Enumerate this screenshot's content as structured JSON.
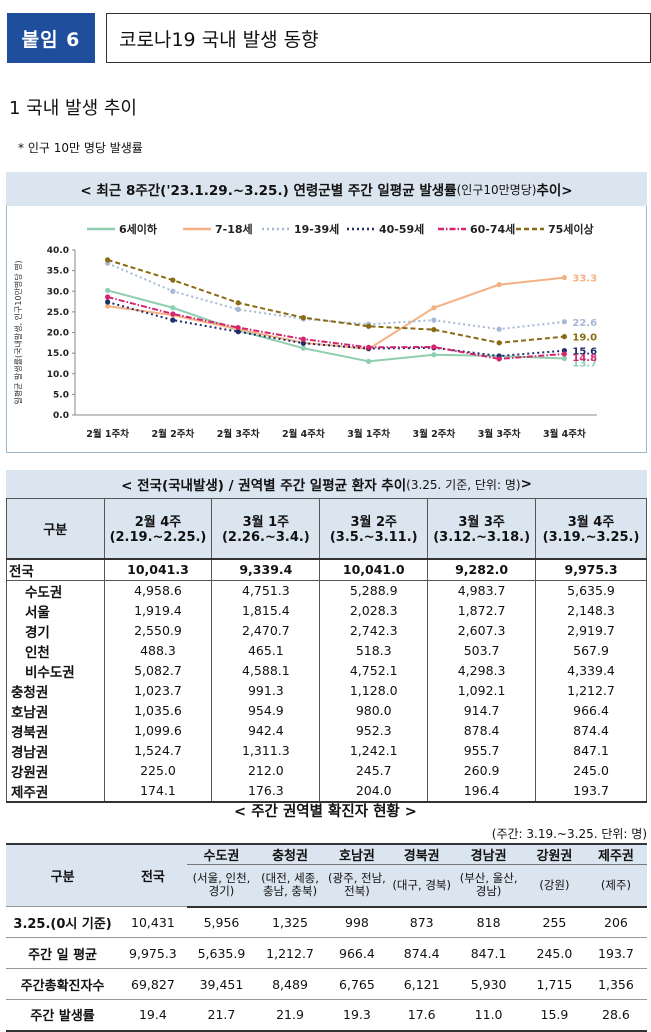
{
  "header": {
    "badge": "붙임 6",
    "title": "코로나19 국내 발생 동향"
  },
  "section": {
    "heading": "1  국내 발생 추이",
    "note": "* 인구 10만 명당 발생률"
  },
  "chart_title": {
    "main": "< 최근 8주간('23.1.29.~3.25.) 연령군별 주간 일평균 발생률",
    "small": "(인구10만명당)",
    "end": " 추이>"
  },
  "colors": {
    "header_blue": "#1f4e9c",
    "light_blue": "#dbe5f0",
    "s_0_6": "#8fcfb0",
    "s_7_18": "#f4b183",
    "s_19_39": "#a6b8d6",
    "s_40_59": "#1f2d6b",
    "s_60_74": "#d6246e",
    "s_75": "#8a6a12"
  },
  "chart_data": {
    "type": "line",
    "title": "최근 8주간('23.1.29.~3.25.) 연령군별 주간 일평균 발생률(인구10만명당) 추이",
    "ylabel": "일평균 발생률(국내발생, 인구10만명당 명)",
    "xlabel": "",
    "ylim": [
      0,
      40
    ],
    "yticks": [
      "0.0",
      "5.0",
      "10.0",
      "15.0",
      "20.0",
      "25.0",
      "30.0",
      "35.0",
      "40.0"
    ],
    "categories": [
      "2월 1주차",
      "2월 2주차",
      "2월 3주차",
      "2월 4주차",
      "3월 1주차",
      "3월 2주차",
      "3월 3주차",
      "3월 4주차"
    ],
    "legend_position": "top",
    "series": [
      {
        "name": "6세이하",
        "color": "#8fcfb0",
        "dash": "solid",
        "values": [
          30.2,
          26.0,
          20.5,
          16.2,
          13.0,
          14.6,
          14.3,
          13.7
        ],
        "end_label": "13.7"
      },
      {
        "name": "7-18세",
        "color": "#f4b183",
        "dash": "solid",
        "values": [
          26.4,
          24.2,
          20.8,
          17.5,
          16.0,
          26.0,
          31.6,
          33.3
        ],
        "end_label": "33.3"
      },
      {
        "name": "19-39세",
        "color": "#a6b8d6",
        "dash": "dot",
        "values": [
          36.8,
          30.0,
          25.6,
          23.3,
          22.0,
          23.0,
          20.8,
          22.6
        ],
        "end_label": "22.6"
      },
      {
        "name": "40-59세",
        "color": "#1f2d6b",
        "dash": "dot",
        "values": [
          27.4,
          23.0,
          20.2,
          17.4,
          16.1,
          16.3,
          14.3,
          15.6
        ],
        "end_label": "15.6"
      },
      {
        "name": "60-74세",
        "color": "#d6246e",
        "dash": "dashdot",
        "values": [
          28.6,
          24.5,
          21.2,
          18.4,
          16.4,
          16.5,
          13.6,
          14.8
        ],
        "end_label": "14.8"
      },
      {
        "name": "75세이상",
        "color": "#8a6a12",
        "dash": "dash",
        "values": [
          37.6,
          32.7,
          27.2,
          23.6,
          21.5,
          20.7,
          17.5,
          19.0
        ],
        "end_label": "19.0"
      }
    ]
  },
  "table1": {
    "caption_main": "< 전국(국내발생) / 권역별 주간 일평균 환자 추이",
    "caption_small": " (3.25. 기준, 단위: 명)",
    "caption_end": "  >",
    "col_label": "구분",
    "columns": [
      {
        "week": "2월 4주",
        "range": "(2.19.~2.25.)"
      },
      {
        "week": "3월 1주",
        "range": "(2.26.~3.4.)"
      },
      {
        "week": "3월 2주",
        "range": "(3.5.~3.11.)"
      },
      {
        "week": "3월 3주",
        "range": "(3.12.~3.18.)"
      },
      {
        "week": "3월 4주",
        "range": "(3.19.~3.25.)"
      }
    ],
    "rows": [
      {
        "label": "전국",
        "values": [
          "10,041.3",
          "9,339.4",
          "10,041.0",
          "9,282.0",
          "9,975.3"
        ]
      },
      {
        "label": "수도권",
        "values": [
          "4,958.6",
          "4,751.3",
          "5,288.9",
          "4,983.7",
          "5,635.9"
        ]
      },
      {
        "label": "서울",
        "values": [
          "1,919.4",
          "1,815.4",
          "2,028.3",
          "1,872.7",
          "2,148.3"
        ]
      },
      {
        "label": "경기",
        "values": [
          "2,550.9",
          "2,470.7",
          "2,742.3",
          "2,607.3",
          "2,919.7"
        ]
      },
      {
        "label": "인천",
        "values": [
          "488.3",
          "465.1",
          "518.3",
          "503.7",
          "567.9"
        ]
      },
      {
        "label": "비수도권",
        "values": [
          "5,082.7",
          "4,588.1",
          "4,752.1",
          "4,298.3",
          "4,339.4"
        ]
      },
      {
        "label": "충청권",
        "values": [
          "1,023.7",
          "991.3",
          "1,128.0",
          "1,092.1",
          "1,212.7"
        ]
      },
      {
        "label": "호남권",
        "values": [
          "1,035.6",
          "954.9",
          "980.0",
          "914.7",
          "966.4"
        ]
      },
      {
        "label": "경북권",
        "values": [
          "1,099.6",
          "942.4",
          "952.3",
          "878.4",
          "874.4"
        ]
      },
      {
        "label": "경남권",
        "values": [
          "1,524.7",
          "1,311.3",
          "1,242.1",
          "955.7",
          "847.1"
        ]
      },
      {
        "label": "강원권",
        "values": [
          "225.0",
          "212.0",
          "245.7",
          "260.9",
          "245.0"
        ]
      },
      {
        "label": "제주권",
        "values": [
          "174.1",
          "176.3",
          "204.0",
          "196.4",
          "193.7"
        ]
      }
    ]
  },
  "table2": {
    "caption": "< 주간 권역별 확진자 현황 >",
    "unit": "(주간: 3.19.~3.25. 단위: 명)",
    "col_label": "구분",
    "national": "전국",
    "regions": [
      {
        "name": "수도권",
        "desc": "(서울, 인천, 경기)"
      },
      {
        "name": "충청권",
        "desc": "(대전, 세종, 충남, 충북)"
      },
      {
        "name": "호남권",
        "desc": "(광주, 전남, 전북)"
      },
      {
        "name": "경북권",
        "desc": "(대구, 경북)"
      },
      {
        "name": "경남권",
        "desc": "(부산, 울산, 경남)"
      },
      {
        "name": "강원권",
        "desc": "(강원)"
      },
      {
        "name": "제주권",
        "desc": "(제주)"
      }
    ],
    "rows": [
      {
        "label": "3.25.(0시 기준)",
        "values": [
          "10,431",
          "5,956",
          "1,325",
          "998",
          "873",
          "818",
          "255",
          "206"
        ]
      },
      {
        "label": "주간 일 평균",
        "values": [
          "9,975.3",
          "5,635.9",
          "1,212.7",
          "966.4",
          "874.4",
          "847.1",
          "245.0",
          "193.7"
        ]
      },
      {
        "label": "주간총확진자수",
        "values": [
          "69,827",
          "39,451",
          "8,489",
          "6,765",
          "6,121",
          "5,930",
          "1,715",
          "1,356"
        ]
      },
      {
        "label": "주간 발생률",
        "values": [
          "19.4",
          "21.7",
          "21.9",
          "19.3",
          "17.6",
          "11.0",
          "15.9",
          "28.6"
        ]
      }
    ]
  }
}
